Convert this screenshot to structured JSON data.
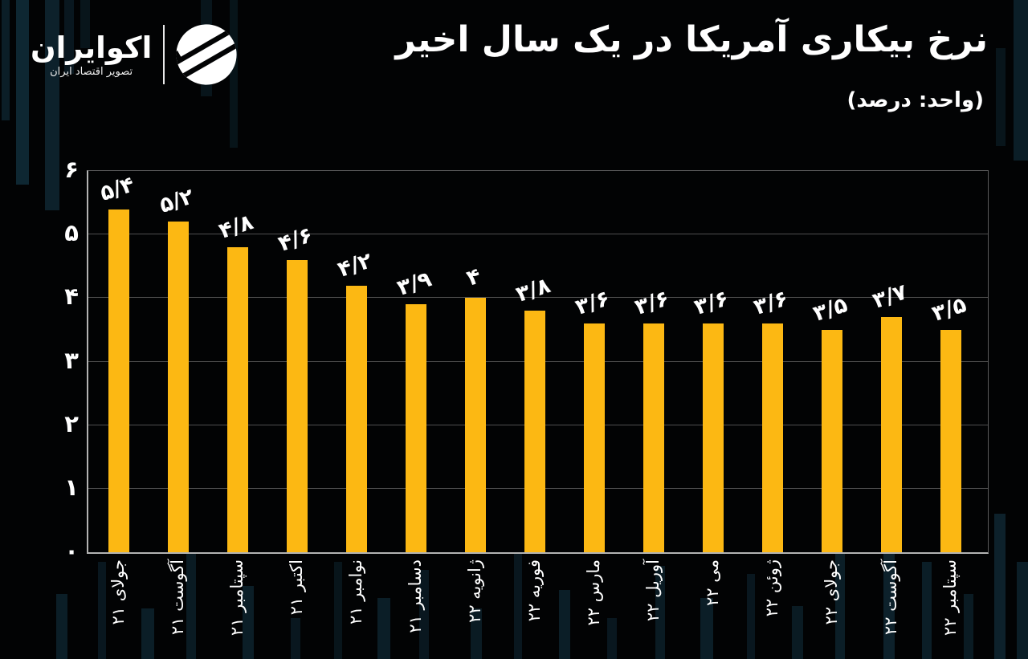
{
  "logo": {
    "name": "اکوایران",
    "tagline": "تصویر اقتصاد ایران"
  },
  "header": {
    "title": "نرخ بیکاری آمریکا در یک سال اخیر",
    "subtitle": "(واحد: درصد)"
  },
  "chart_data": {
    "type": "bar",
    "title": "نرخ بیکاری آمریکا در یک سال اخیر",
    "unit_label": "(واحد: درصد)",
    "categories": [
      "جولای ۲۱",
      "آگوست ۲۱",
      "سپتامبر ۲۱",
      "اکتبر ۲۱",
      "نوامبر ۲۱",
      "دسامبر ۲۱",
      "ژانویه ۲۲",
      "فوریه ۲۲",
      "مارس ۲۲",
      "آوریل ۲۲",
      "می ۲۲",
      "ژوئن ۲۲",
      "جولای ۲۲",
      "آگوست ۲۲",
      "سپتامبر ۲۲"
    ],
    "values": [
      5.4,
      5.2,
      4.8,
      4.6,
      4.2,
      3.9,
      4,
      3.8,
      3.6,
      3.6,
      3.6,
      3.6,
      3.5,
      3.7,
      3.5
    ],
    "value_labels": [
      "۵/۴",
      "۵/۲",
      "۴/۸",
      "۴/۶",
      "۴/۲",
      "۳/۹",
      "۴",
      "۳/۸",
      "۳/۶",
      "۳/۶",
      "۳/۶",
      "۳/۶",
      "۳/۵",
      "۳/۷",
      "۳/۵"
    ],
    "y_ticks": [
      "۰",
      "۱",
      "۲",
      "۳",
      "۴",
      "۵",
      "۶"
    ],
    "ylim": [
      0,
      6
    ],
    "xlabel": "",
    "ylabel": "",
    "grid": true,
    "legend": "none",
    "bar_color": "#FCB813",
    "background_color": "#000000",
    "text_color": "#FFFFFF"
  }
}
